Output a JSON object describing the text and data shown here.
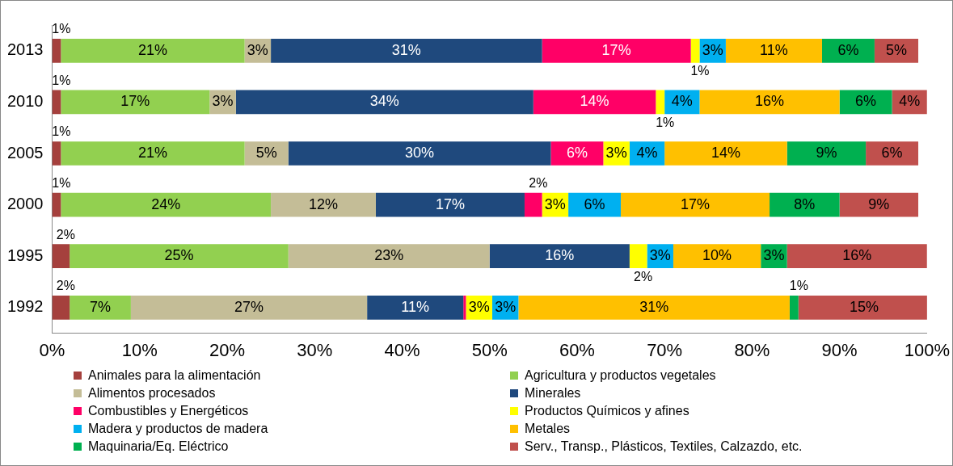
{
  "chart_data": {
    "type": "bar",
    "orientation": "horizontal",
    "stacked": true,
    "categories": [
      "2013",
      "2010",
      "2005",
      "2000",
      "1995",
      "1992"
    ],
    "xlim": [
      0,
      100
    ],
    "xticks": [
      {
        "value": 0,
        "label": "0%"
      },
      {
        "value": 10,
        "label": "10%"
      },
      {
        "value": 20,
        "label": "20%"
      },
      {
        "value": 30,
        "label": "30%"
      },
      {
        "value": 40,
        "label": "40%"
      },
      {
        "value": 50,
        "label": "50%"
      },
      {
        "value": 60,
        "label": "60%"
      },
      {
        "value": 70,
        "label": "70%"
      },
      {
        "value": 80,
        "label": "80%"
      },
      {
        "value": 90,
        "label": "90%"
      },
      {
        "value": 100,
        "label": "100%"
      }
    ],
    "grid": false,
    "legend": "bottom",
    "series": [
      {
        "name": "Animales para la alimentación",
        "color": "#a5403d",
        "values": [
          1,
          1,
          1,
          1,
          2,
          2
        ],
        "value_labels": [
          "1%",
          "1%",
          "1%",
          "1%",
          "2%",
          "2%"
        ]
      },
      {
        "name": "Agricultura y productos vegetales",
        "color": "#92d050",
        "values": [
          21,
          17,
          21,
          24,
          25,
          7
        ],
        "value_labels": [
          "21%",
          "17%",
          "21%",
          "24%",
          "25%",
          "7%"
        ]
      },
      {
        "name": "Alimentos procesados",
        "color": "#c4bd97",
        "values": [
          3,
          3,
          5,
          12,
          23,
          27
        ],
        "value_labels": [
          "3%",
          "3%",
          "5%",
          "12%",
          "23%",
          "27%"
        ]
      },
      {
        "name": "Minerales",
        "color": "#1f497d",
        "values": [
          31,
          34,
          30,
          17,
          16,
          11
        ],
        "value_labels": [
          "31%",
          "34%",
          "30%",
          "17%",
          "16%",
          "11%"
        ]
      },
      {
        "name": "Combustibles y Energéticos",
        "color": "#ff0066",
        "values": [
          17,
          14,
          6,
          2,
          0,
          0.3
        ],
        "value_labels": [
          "17%",
          "14%",
          "6%",
          "2%",
          null,
          null
        ]
      },
      {
        "name": "Productos Químicos y afines",
        "color": "#ffff00",
        "values": [
          1,
          1,
          3,
          3,
          2,
          3
        ],
        "value_labels": [
          "1%",
          "1%",
          "3%",
          "3%",
          "2%",
          "3%"
        ]
      },
      {
        "name": "Madera y productos de madera",
        "color": "#00b0f0",
        "values": [
          3,
          4,
          4,
          6,
          3,
          3
        ],
        "value_labels": [
          "3%",
          "4%",
          "4%",
          "6%",
          "3%",
          "3%"
        ]
      },
      {
        "name": "Metales",
        "color": "#ffc000",
        "values": [
          11,
          16,
          14,
          17,
          10,
          31
        ],
        "value_labels": [
          "11%",
          "16%",
          "14%",
          "17%",
          "10%",
          "31%"
        ]
      },
      {
        "name": "Maquinaria/Eq. Eléctrico",
        "color": "#00b050",
        "values": [
          6,
          6,
          9,
          8,
          3,
          1
        ],
        "value_labels": [
          "6%",
          "6%",
          "9%",
          "8%",
          "3%",
          "1%"
        ]
      },
      {
        "name": "Serv., Transp., Plásticos, Textiles, Calzazdo, etc.",
        "color": "#c0504d",
        "values": [
          5,
          4,
          6,
          9,
          16,
          15
        ],
        "value_labels": [
          "5%",
          "4%",
          "6%",
          "9%",
          "16%",
          "15%"
        ]
      }
    ]
  }
}
